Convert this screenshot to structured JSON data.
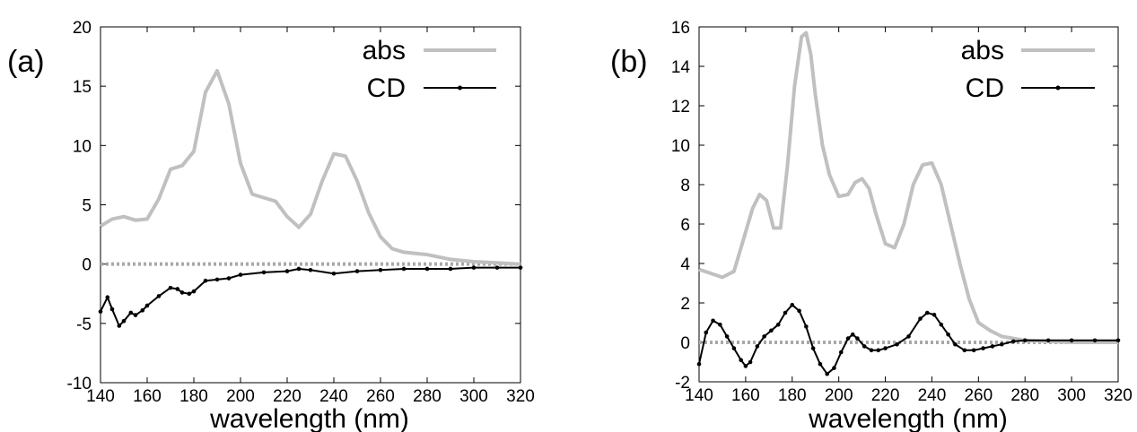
{
  "chart_data": [
    {
      "type": "line",
      "panel_label": "(a)",
      "xlabel": "wavelength (nm)",
      "ylabel": "",
      "xlim": [
        140,
        320
      ],
      "ylim": [
        -10,
        20
      ],
      "x_ticks": [
        "140",
        "160",
        "180",
        "200",
        "220",
        "240",
        "260",
        "280",
        "300",
        "320"
      ],
      "y_ticks": [
        "-10",
        "-5",
        "0",
        "5",
        "10",
        "15",
        "20"
      ],
      "x_tick_values": [
        140,
        160,
        180,
        200,
        220,
        240,
        260,
        280,
        300,
        320
      ],
      "y_tick_values": [
        -10,
        -5,
        0,
        5,
        10,
        15,
        20
      ],
      "legend_position": "top-right",
      "zero_line": true,
      "series": [
        {
          "name": "abs",
          "color": "#c0c0c0",
          "x": [
            140,
            145,
            150,
            155,
            160,
            165,
            170,
            175,
            180,
            185,
            190,
            195,
            200,
            205,
            210,
            215,
            220,
            225,
            230,
            235,
            240,
            245,
            250,
            255,
            260,
            265,
            270,
            280,
            290,
            300,
            310,
            320
          ],
          "y": [
            3.2,
            3.8,
            4.0,
            3.7,
            3.8,
            5.5,
            8.0,
            8.3,
            9.5,
            14.5,
            16.3,
            13.5,
            8.5,
            5.9,
            5.6,
            5.3,
            4.0,
            3.1,
            4.2,
            7.0,
            9.3,
            9.1,
            7.0,
            4.3,
            2.3,
            1.3,
            1.0,
            0.8,
            0.4,
            0.2,
            0.1,
            0.0
          ]
        },
        {
          "name": "CD",
          "color": "#000000",
          "x": [
            140,
            143,
            145,
            148,
            150,
            153,
            155,
            158,
            160,
            165,
            170,
            173,
            175,
            178,
            180,
            185,
            190,
            195,
            200,
            210,
            220,
            225,
            230,
            240,
            250,
            260,
            270,
            280,
            290,
            300,
            310,
            320
          ],
          "y": [
            -4.0,
            -2.8,
            -3.8,
            -5.2,
            -4.8,
            -4.1,
            -4.3,
            -3.9,
            -3.5,
            -2.7,
            -2.0,
            -2.1,
            -2.4,
            -2.5,
            -2.3,
            -1.4,
            -1.3,
            -1.2,
            -0.9,
            -0.7,
            -0.6,
            -0.4,
            -0.5,
            -0.8,
            -0.6,
            -0.5,
            -0.4,
            -0.4,
            -0.4,
            -0.3,
            -0.3,
            -0.3
          ]
        }
      ]
    },
    {
      "type": "line",
      "panel_label": "(b)",
      "xlabel": "wavelength (nm)",
      "ylabel": "",
      "xlim": [
        140,
        320
      ],
      "ylim": [
        -2,
        16
      ],
      "x_ticks": [
        "140",
        "160",
        "180",
        "200",
        "220",
        "240",
        "260",
        "280",
        "300",
        "320"
      ],
      "y_ticks": [
        "-2",
        "0",
        "2",
        "4",
        "6",
        "8",
        "10",
        "12",
        "14",
        "16"
      ],
      "x_tick_values": [
        140,
        160,
        180,
        200,
        220,
        240,
        260,
        280,
        300,
        320
      ],
      "y_tick_values": [
        -2,
        0,
        2,
        4,
        6,
        8,
        10,
        12,
        14,
        16
      ],
      "legend_position": "top-right",
      "zero_line": true,
      "series": [
        {
          "name": "abs",
          "color": "#c0c0c0",
          "x": [
            140,
            145,
            150,
            155,
            160,
            163,
            166,
            169,
            172,
            175,
            178,
            181,
            184,
            186,
            188,
            190,
            193,
            196,
            200,
            204,
            207,
            210,
            213,
            216,
            220,
            224,
            228,
            232,
            236,
            240,
            244,
            248,
            252,
            256,
            260,
            265,
            270,
            280,
            290,
            300,
            310,
            320
          ],
          "y": [
            3.7,
            3.5,
            3.3,
            3.6,
            5.6,
            6.8,
            7.5,
            7.2,
            5.8,
            5.8,
            9.0,
            13.0,
            15.5,
            15.7,
            14.6,
            12.5,
            10.0,
            8.5,
            7.4,
            7.5,
            8.1,
            8.3,
            7.8,
            6.5,
            5.0,
            4.8,
            6.0,
            8.0,
            9.0,
            9.1,
            8.0,
            6.0,
            4.0,
            2.2,
            1.0,
            0.6,
            0.3,
            0.1,
            0.05,
            0.0,
            0.0,
            0.0
          ]
        },
        {
          "name": "CD",
          "color": "#000000",
          "x": [
            140,
            143,
            146,
            149,
            152,
            155,
            158,
            160,
            162,
            165,
            168,
            171,
            174,
            177,
            180,
            183,
            186,
            189,
            192,
            195,
            198,
            201,
            204,
            206,
            208,
            211,
            214,
            217,
            220,
            225,
            230,
            235,
            238,
            241,
            244,
            247,
            250,
            254,
            258,
            262,
            266,
            270,
            275,
            280,
            290,
            300,
            310,
            320
          ],
          "y": [
            -1.1,
            0.5,
            1.1,
            0.9,
            0.3,
            -0.3,
            -0.9,
            -1.2,
            -1.0,
            -0.2,
            0.3,
            0.6,
            0.9,
            1.5,
            1.9,
            1.6,
            0.8,
            -0.3,
            -1.1,
            -1.6,
            -1.3,
            -0.5,
            0.2,
            0.4,
            0.2,
            -0.2,
            -0.4,
            -0.4,
            -0.3,
            -0.1,
            0.3,
            1.2,
            1.5,
            1.4,
            0.9,
            0.4,
            -0.1,
            -0.4,
            -0.4,
            -0.3,
            -0.2,
            -0.1,
            0.05,
            0.1,
            0.1,
            0.1,
            0.1,
            0.1
          ]
        }
      ]
    }
  ]
}
